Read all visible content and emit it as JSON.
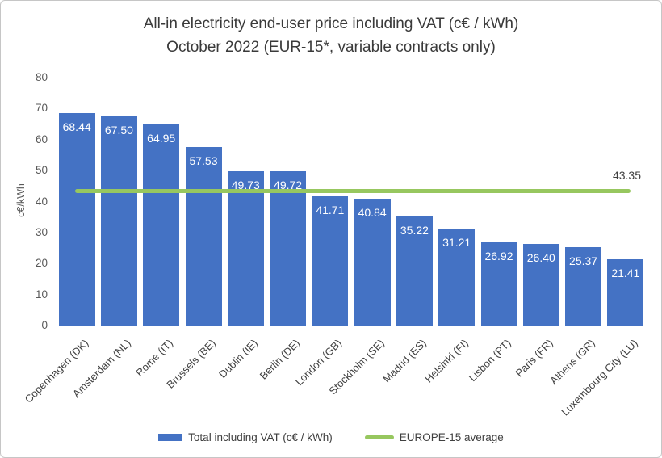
{
  "title": {
    "line1": "All-in electricity end-user price including VAT (c€ / kWh)",
    "line2": "October 2022 (EUR-15*, variable contracts only)"
  },
  "chart_data": {
    "type": "bar",
    "title": "All-in electricity end-user price including VAT (c€ / kWh) October 2022 (EUR-15*, variable contracts only)",
    "categories": [
      "Copenhagen (DK)",
      "Amsterdam (NL)",
      "Rome (IT)",
      "Brussels (BE)",
      "Dublin (IE)",
      "Berlin (DE)",
      "London (GB)",
      "Stockholm (SE)",
      "Madrid (ES)",
      "Helsinki (FI)",
      "Lisbon (PT)",
      "Paris (FR)",
      "Athens (GR)",
      "Luxembourg City (LU)"
    ],
    "values": [
      68.44,
      67.5,
      64.95,
      57.53,
      49.73,
      49.72,
      41.71,
      40.84,
      35.22,
      31.21,
      26.92,
      26.4,
      25.37,
      21.41
    ],
    "ylabel": "c€/kWh",
    "xlabel": "",
    "ylim": [
      0,
      80
    ],
    "yticks": [
      0,
      10,
      20,
      30,
      40,
      50,
      60,
      70,
      80
    ],
    "grid": false,
    "legend_position": "bottom",
    "average_line": {
      "value": 43.35,
      "label": "43.35"
    },
    "bar_color": "#4472C4",
    "avg_line_color": "#97C75F",
    "value_label_color": "#FFFFFF"
  },
  "legend": {
    "items": [
      {
        "label": "Total including VAT (c€ / kWh)",
        "swatch": "bar",
        "color": "#4472C4"
      },
      {
        "label": "EUROPE-15 average",
        "swatch": "line",
        "color": "#97C75F"
      }
    ]
  }
}
